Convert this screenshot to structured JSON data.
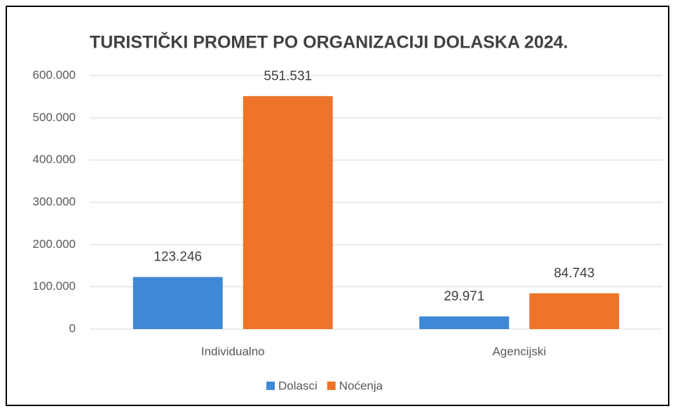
{
  "chart_data": {
    "type": "bar",
    "title": "TURISTIČKI PROMET PO ORGANIZACIJI DOLASKA 2024.",
    "categories": [
      "Individualno",
      "Agencijski"
    ],
    "series": [
      {
        "name": "Dolasci",
        "color": "#3f88d6",
        "values": [
          123246,
          29971
        ],
        "value_labels": [
          "123.246",
          "29.971"
        ]
      },
      {
        "name": "Noćenja",
        "color": "#ed7428",
        "values": [
          551531,
          84743
        ],
        "value_labels": [
          "551.531",
          "84.743"
        ]
      }
    ],
    "ylim": [
      0,
      600000
    ],
    "yticks": [
      0,
      {
        "value": 100000,
        "label": "100.000"
      },
      {
        "value": 200000,
        "label": "200.000"
      },
      {
        "value": 300000,
        "label": "300.000"
      },
      {
        "value": 400000,
        "label": "400.000"
      },
      {
        "value": 500000,
        "label": "500.000"
      },
      {
        "value": 600000,
        "label": "600.000"
      }
    ],
    "grid": true,
    "legend": "bottom"
  }
}
